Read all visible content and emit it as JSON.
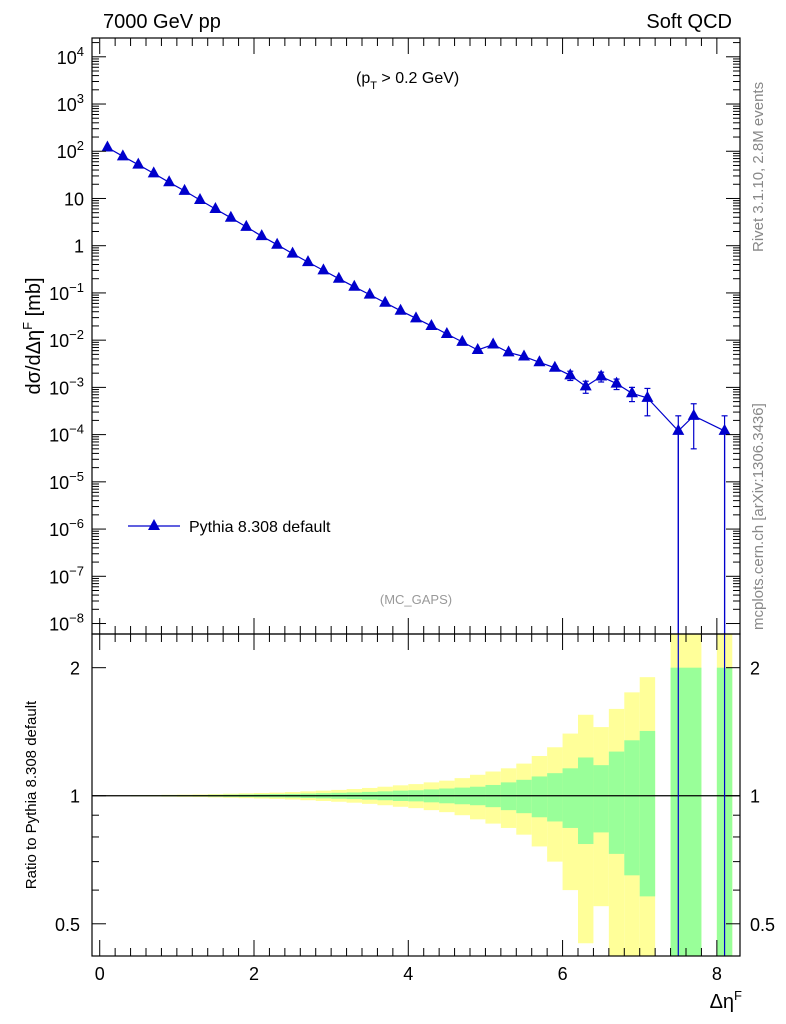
{
  "header": {
    "left": "7000 GeV pp",
    "right": "Soft QCD"
  },
  "side_text": {
    "top": "Rivet 3.1.10,  2.8M events",
    "bottom": "mcplots.cern.ch [arXiv:1306.3436]"
  },
  "chart_data": {
    "type": "line",
    "annotation": "(p_T > 0.2 GeV)",
    "watermark": "(MC_GAPS)",
    "main": {
      "ylabel": "dσ/dΔη^F [mb]",
      "yscale": "log",
      "ylim": [
        6e-09,
        25000
      ],
      "xlim": [
        -0.1,
        8.3
      ],
      "ytick_labels": [
        "10^-8",
        "10^-7",
        "10^-6",
        "10^-5",
        "10^-4",
        "10^-3",
        "10^-2",
        "10^-1",
        "1",
        "10",
        "10^2",
        "10^3",
        "10^4"
      ],
      "series": [
        {
          "name": "Pythia 8.308 default",
          "color": "#0000cc",
          "marker": "triangle-up",
          "x": [
            0.1,
            0.3,
            0.5,
            0.7,
            0.9,
            1.1,
            1.3,
            1.5,
            1.7,
            1.9,
            2.1,
            2.3,
            2.5,
            2.7,
            2.9,
            3.1,
            3.3,
            3.5,
            3.7,
            3.9,
            4.1,
            4.3,
            4.5,
            4.7,
            4.9,
            5.1,
            5.3,
            5.5,
            5.7,
            5.9,
            6.1,
            6.3,
            6.5,
            6.7,
            6.9,
            7.1,
            7.5,
            7.7,
            8.1
          ],
          "y": [
            120,
            78,
            52,
            34,
            22,
            14.5,
            9.3,
            6.0,
            3.9,
            2.5,
            1.6,
            1.05,
            0.68,
            0.45,
            0.3,
            0.2,
            0.135,
            0.092,
            0.062,
            0.042,
            0.029,
            0.02,
            0.0135,
            0.0092,
            0.0062,
            0.0081,
            0.0055,
            0.0045,
            0.0034,
            0.0026,
            0.0018,
            0.00105,
            0.0017,
            0.0012,
            0.00075,
            0.0006,
            0.00012,
            0.00025,
            0.00012
          ],
          "yerr": [
            0,
            0,
            0,
            0,
            0,
            0,
            0,
            0,
            0,
            0,
            0,
            0,
            0,
            0,
            0,
            0,
            0,
            0,
            0,
            0,
            0,
            0,
            0,
            0,
            0,
            0,
            0,
            0,
            0,
            0.0002,
            0.0004,
            0.0003,
            0.0004,
            0.0003,
            0.00025,
            0.00035,
            0.00013,
            0.0002,
            0.00013
          ]
        }
      ]
    },
    "ratio": {
      "ylabel": "Ratio to Pythia 8.308 default",
      "yscale": "log",
      "ylim": [
        0.42,
        2.4
      ],
      "ytick_labels": [
        "0.5",
        "1",
        "2"
      ],
      "reference": 1,
      "band_colors": {
        "inner": "#99ff99",
        "outer": "#ffff99"
      },
      "bins": {
        "x_edges": [
          0.0,
          0.2,
          0.4,
          0.6,
          0.8,
          1.0,
          1.2,
          1.4,
          1.6,
          1.8,
          2.0,
          2.2,
          2.4,
          2.6,
          2.8,
          3.0,
          3.2,
          3.4,
          3.6,
          3.8,
          4.0,
          4.2,
          4.4,
          4.6,
          4.8,
          5.0,
          5.2,
          5.4,
          5.6,
          5.8,
          6.0,
          6.2,
          6.4,
          6.6,
          6.8,
          7.0,
          7.2,
          7.4,
          7.6,
          7.8,
          8.0,
          8.2
        ],
        "inner_rel": [
          0.001,
          0.001,
          0.002,
          0.002,
          0.003,
          0.003,
          0.004,
          0.005,
          0.006,
          0.007,
          0.008,
          0.009,
          0.01,
          0.012,
          0.014,
          0.016,
          0.018,
          0.021,
          0.024,
          0.028,
          0.03,
          0.035,
          0.04,
          0.045,
          0.05,
          0.06,
          0.075,
          0.09,
          0.11,
          0.13,
          0.16,
          0.23,
          0.18,
          0.27,
          0.35,
          0.42,
          null,
          1.0,
          1.0,
          null,
          1.0
        ],
        "outer_rel": [
          0.002,
          0.002,
          0.003,
          0.004,
          0.005,
          0.006,
          0.007,
          0.009,
          0.011,
          0.013,
          0.015,
          0.017,
          0.02,
          0.024,
          0.028,
          0.032,
          0.037,
          0.043,
          0.05,
          0.058,
          0.065,
          0.075,
          0.085,
          0.1,
          0.12,
          0.14,
          0.16,
          0.19,
          0.24,
          0.3,
          0.4,
          0.55,
          0.45,
          0.6,
          0.75,
          0.9,
          null,
          2.0,
          2.0,
          null,
          2.0
        ]
      }
    },
    "xlabel": "Δη^F",
    "xtick_labels": [
      "0",
      "2",
      "4",
      "6",
      "8"
    ]
  }
}
